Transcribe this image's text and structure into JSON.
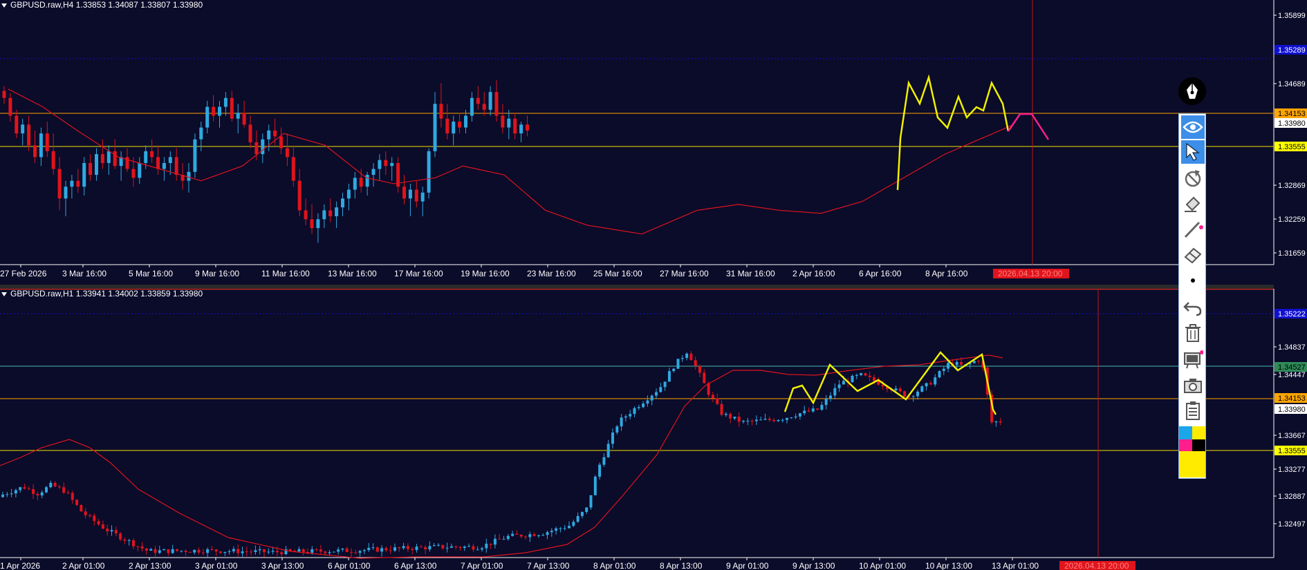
{
  "colors": {
    "background": "#0b0b2a",
    "bull": "#2fa9e0",
    "bear": "#e0141c",
    "ma": "#e0141c",
    "grid": "#1a1a5a",
    "yellow": "#f0f000",
    "magenta": "#ff1e8c",
    "orange": "#ffa500",
    "aqua": "#40c0b0",
    "blue_level": "#1010d0",
    "price_fill": "#ffff00"
  },
  "top": {
    "title": "GBPUSD.raw,H4  1.33853 1.34087 1.33807 1.33980",
    "price_labels": [
      "1.35899",
      "1.35289",
      "1.34689",
      "1.34153",
      "1.33980",
      "1.33555",
      "1.32869",
      "1.32259",
      "1.31659"
    ],
    "time_labels": [
      "27 Feb 2026",
      "3 Mar 16:00",
      "5 Mar 16:00",
      "9 Mar 16:00",
      "11 Mar 16:00",
      "13 Mar 16:00",
      "17 Mar 16:00",
      "19 Mar 16:00",
      "23 Mar 16:00",
      "25 Mar 16:00",
      "27 Mar 16:00",
      "31 Mar 16:00",
      "2 Apr 16:00",
      "6 Apr 16:00",
      "8 Apr 16:00"
    ],
    "cursor_label": "2026.04.13 20:00",
    "candles": [
      [
        1.3462,
        1.347,
        1.344,
        1.345
      ],
      [
        1.345,
        1.3458,
        1.341,
        1.342
      ],
      [
        1.342,
        1.343,
        1.3382,
        1.339
      ],
      [
        1.339,
        1.3415,
        1.337,
        1.3405
      ],
      [
        1.3405,
        1.342,
        1.336,
        1.337
      ],
      [
        1.337,
        1.3395,
        1.334,
        1.335
      ],
      [
        1.335,
        1.34,
        1.3335,
        1.339
      ],
      [
        1.339,
        1.341,
        1.335,
        1.336
      ],
      [
        1.336,
        1.339,
        1.332,
        1.333
      ],
      [
        1.333,
        1.335,
        1.326,
        1.328
      ],
      [
        1.328,
        1.331,
        1.325,
        1.33
      ],
      [
        1.33,
        1.332,
        1.328,
        1.331
      ],
      [
        1.331,
        1.333,
        1.329,
        1.33
      ],
      [
        1.33,
        1.335,
        1.3285,
        1.334
      ],
      [
        1.334,
        1.3355,
        1.331,
        1.332
      ],
      [
        1.332,
        1.3365,
        1.331,
        1.3355
      ],
      [
        1.3355,
        1.338,
        1.333,
        1.334
      ],
      [
        1.334,
        1.337,
        1.332,
        1.336
      ],
      [
        1.336,
        1.338,
        1.333,
        1.3335
      ],
      [
        1.3335,
        1.336,
        1.331,
        1.335
      ],
      [
        1.335,
        1.3365,
        1.3325,
        1.333
      ],
      [
        1.333,
        1.335,
        1.33,
        1.3315
      ],
      [
        1.3315,
        1.335,
        1.3305,
        1.334
      ],
      [
        1.334,
        1.337,
        1.333,
        1.336
      ],
      [
        1.336,
        1.338,
        1.334,
        1.335
      ],
      [
        1.335,
        1.337,
        1.332,
        1.333
      ],
      [
        1.333,
        1.335,
        1.331,
        1.334
      ],
      [
        1.334,
        1.336,
        1.332,
        1.335
      ],
      [
        1.335,
        1.3365,
        1.331,
        1.332
      ],
      [
        1.332,
        1.334,
        1.3295,
        1.331
      ],
      [
        1.331,
        1.334,
        1.329,
        1.3325
      ],
      [
        1.3325,
        1.339,
        1.3315,
        1.338
      ],
      [
        1.338,
        1.341,
        1.336,
        1.34
      ],
      [
        1.34,
        1.3445,
        1.339,
        1.3435
      ],
      [
        1.3435,
        1.3455,
        1.341,
        1.342
      ],
      [
        1.342,
        1.3445,
        1.34,
        1.3435
      ],
      [
        1.3435,
        1.346,
        1.342,
        1.345
      ],
      [
        1.345,
        1.3462,
        1.341,
        1.3415
      ],
      [
        1.3415,
        1.344,
        1.339,
        1.3425
      ],
      [
        1.3425,
        1.3445,
        1.34,
        1.3405
      ],
      [
        1.3405,
        1.342,
        1.3365,
        1.3375
      ],
      [
        1.3375,
        1.3395,
        1.3345,
        1.3355
      ],
      [
        1.3355,
        1.339,
        1.334,
        1.338
      ],
      [
        1.338,
        1.3405,
        1.336,
        1.3395
      ],
      [
        1.3395,
        1.3415,
        1.337,
        1.3385
      ],
      [
        1.3385,
        1.34,
        1.3355,
        1.3365
      ],
      [
        1.3365,
        1.339,
        1.3335,
        1.335
      ],
      [
        1.335,
        1.337,
        1.33,
        1.331
      ],
      [
        1.331,
        1.333,
        1.325,
        1.326
      ],
      [
        1.326,
        1.328,
        1.3235,
        1.3245
      ],
      [
        1.3245,
        1.327,
        1.322,
        1.323
      ],
      [
        1.323,
        1.3255,
        1.3205,
        1.3245
      ],
      [
        1.3245,
        1.327,
        1.323,
        1.326
      ],
      [
        1.326,
        1.328,
        1.324,
        1.325
      ],
      [
        1.325,
        1.3275,
        1.323,
        1.3265
      ],
      [
        1.3265,
        1.329,
        1.325,
        1.328
      ],
      [
        1.328,
        1.3305,
        1.326,
        1.3295
      ],
      [
        1.3295,
        1.3325,
        1.328,
        1.3315
      ],
      [
        1.3315,
        1.333,
        1.329,
        1.33
      ],
      [
        1.33,
        1.3325,
        1.3285,
        1.332
      ],
      [
        1.332,
        1.334,
        1.33,
        1.333
      ],
      [
        1.333,
        1.3355,
        1.331,
        1.3345
      ],
      [
        1.3345,
        1.336,
        1.332,
        1.3335
      ],
      [
        1.3335,
        1.335,
        1.331,
        1.334
      ],
      [
        1.334,
        1.335,
        1.329,
        1.33
      ],
      [
        1.33,
        1.332,
        1.327,
        1.328
      ],
      [
        1.328,
        1.3305,
        1.325,
        1.3295
      ],
      [
        1.3295,
        1.331,
        1.3265,
        1.3275
      ],
      [
        1.3275,
        1.33,
        1.325,
        1.329
      ],
      [
        1.329,
        1.3365,
        1.328,
        1.336
      ],
      [
        1.336,
        1.346,
        1.335,
        1.344
      ],
      [
        1.344,
        1.3475,
        1.34,
        1.3415
      ],
      [
        1.3415,
        1.344,
        1.338,
        1.339
      ],
      [
        1.339,
        1.342,
        1.337,
        1.341
      ],
      [
        1.341,
        1.3425,
        1.339,
        1.34
      ],
      [
        1.34,
        1.343,
        1.339,
        1.342
      ],
      [
        1.342,
        1.346,
        1.341,
        1.345
      ],
      [
        1.345,
        1.347,
        1.343,
        1.344
      ],
      [
        1.344,
        1.346,
        1.342,
        1.343
      ],
      [
        1.343,
        1.347,
        1.342,
        1.346
      ],
      [
        1.346,
        1.348,
        1.341,
        1.342
      ],
      [
        1.342,
        1.344,
        1.339,
        1.34
      ],
      [
        1.34,
        1.343,
        1.338,
        1.3415
      ],
      [
        1.3415,
        1.3425,
        1.338,
        1.339
      ],
      [
        1.339,
        1.341,
        1.3375,
        1.3405
      ],
      [
        1.3405,
        1.342,
        1.3385,
        1.3395
      ]
    ],
    "ma": [
      [
        0,
        1.3465
      ],
      [
        5,
        1.3435
      ],
      [
        10,
        1.3395
      ],
      [
        16,
        1.335
      ],
      [
        22,
        1.333
      ],
      [
        28,
        1.331
      ],
      [
        34,
        1.3335
      ],
      [
        40,
        1.339
      ],
      [
        46,
        1.337
      ],
      [
        52,
        1.3315
      ],
      [
        56,
        1.3305
      ],
      [
        62,
        1.3315
      ],
      [
        66,
        1.3335
      ],
      [
        72,
        1.332
      ],
      [
        78,
        1.326
      ],
      [
        84,
        1.3235
      ],
      [
        92,
        1.322
      ],
      [
        100,
        1.326
      ],
      [
        106,
        1.327
      ],
      [
        112,
        1.326
      ],
      [
        118,
        1.3255
      ],
      [
        124,
        1.3275
      ],
      [
        130,
        1.3315
      ],
      [
        136,
        1.3355
      ],
      [
        142,
        1.3385
      ],
      [
        146,
        1.3405
      ]
    ]
  },
  "bottom": {
    "title": "GBPUSD.raw,H1  1.33941 1.34002 1.33859 1.33980",
    "price_labels": [
      "1.35222",
      "1.34837",
      "1.34447",
      "1.34527",
      "1.34153",
      "1.33980",
      "1.33667",
      "1.33555",
      "1.33277",
      "1.32887",
      "1.32497"
    ],
    "time_labels": [
      "1 Apr 2026",
      "2 Apr 01:00",
      "2 Apr 13:00",
      "3 Apr 01:00",
      "3 Apr 13:00",
      "6 Apr 01:00",
      "6 Apr 13:00",
      "7 Apr 01:00",
      "7 Apr 13:00",
      "8 Apr 01:00",
      "8 Apr 13:00",
      "9 Apr 01:00",
      "9 Apr 13:00",
      "10 Apr 01:00",
      "10 Apr 13:00",
      "13 Apr 01:00"
    ],
    "cursor_label": "2026.04.13 20:00"
  },
  "toolbar": {
    "tools": [
      "pen-icon",
      "eye-icon",
      "cursor-icon",
      "no-draw-icon",
      "eraser-brush-icon",
      "line-tool-icon",
      "eraser-icon",
      "dot-size-icon",
      "undo-icon",
      "trash-icon",
      "screen-icon",
      "camera-icon",
      "clipboard-icon",
      "color-palette"
    ],
    "palette_colors": [
      "#1aa6e8",
      "#ffeb00",
      "#ff1e8c",
      "#000000",
      "#ffeb00"
    ]
  }
}
